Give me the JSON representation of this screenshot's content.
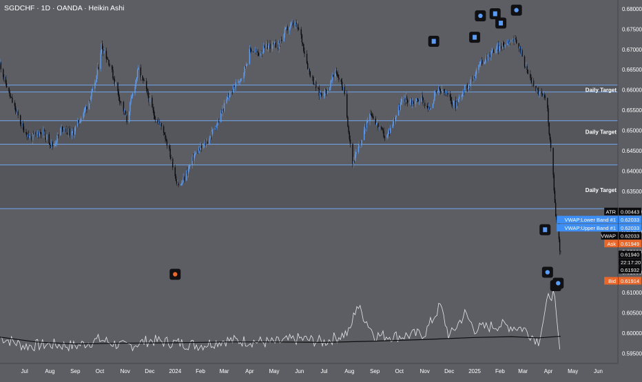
{
  "header": {
    "title": "SGDCHF · 1D · OANDA · Heikin Ashi"
  },
  "colors": {
    "background": "#5d5e64",
    "band": "#55565c",
    "up_candle": "#5b9cf6",
    "down_candle": "#0c0c0e",
    "target_line": "#6fa8f0",
    "volume_line": "#e8e8ea",
    "volume_ma": "#0c0c0e",
    "bid_ask": "#e8672a",
    "vwap_band": "#3d8ff5"
  },
  "chart_data": {
    "type": "candlestick",
    "price_axis": {
      "ticks": [
        0.68,
        0.675,
        0.67,
        0.665,
        0.66,
        0.655,
        0.65,
        0.645,
        0.64,
        0.635,
        0.63,
        0.625,
        0.62,
        0.615,
        0.61,
        0.605,
        0.6,
        0.595
      ],
      "tick_labels": [
        "0.68000",
        "0.67500",
        "0.67000",
        "0.66500",
        "0.66000",
        "0.65500",
        "0.65000",
        "0.64500",
        "0.64000",
        "0.63500",
        "0.63000",
        "0.62500",
        "0.62000",
        "0.61500",
        "0.61000",
        "0.60500",
        "0.60000",
        "0.59500"
      ],
      "range": [
        0.5925,
        0.6822
      ]
    },
    "time_axis": {
      "labels": [
        "Jul",
        "Aug",
        "Sep",
        "Oct",
        "Nov",
        "Dec",
        "2024",
        "Feb",
        "Mar",
        "Apr",
        "May",
        "Jun",
        "Jul",
        "Aug",
        "Sep",
        "Oct",
        "Nov",
        "Dec",
        "2025",
        "Feb",
        "Mar",
        "Apr",
        "May",
        "Jun"
      ],
      "range": [
        "2023-06-01",
        "2025-06-25"
      ]
    },
    "price_path": [
      [
        "2023-06-01",
        0.6665
      ],
      [
        "2023-06-12",
        0.659
      ],
      [
        "2023-06-28",
        0.651
      ],
      [
        "2023-07-08",
        0.648
      ],
      [
        "2023-07-22",
        0.65
      ],
      [
        "2023-08-05",
        0.646
      ],
      [
        "2023-08-16",
        0.651
      ],
      [
        "2023-08-28",
        0.649
      ],
      [
        "2023-09-15",
        0.656
      ],
      [
        "2023-09-25",
        0.661
      ],
      [
        "2023-10-03",
        0.671
      ],
      [
        "2023-10-12",
        0.667
      ],
      [
        "2023-10-25",
        0.658
      ],
      [
        "2023-11-03",
        0.6525
      ],
      [
        "2023-11-10",
        0.659
      ],
      [
        "2023-11-17",
        0.665
      ],
      [
        "2023-11-25",
        0.661
      ],
      [
        "2023-12-06",
        0.654
      ],
      [
        "2023-12-18",
        0.65
      ],
      [
        "2023-12-30",
        0.641
      ],
      [
        "2024-01-02",
        0.638
      ],
      [
        "2024-01-07",
        0.636
      ],
      [
        "2024-01-16",
        0.64
      ],
      [
        "2024-01-25",
        0.644
      ],
      [
        "2024-02-08",
        0.647
      ],
      [
        "2024-02-22",
        0.652
      ],
      [
        "2024-03-05",
        0.658
      ],
      [
        "2024-03-14",
        0.661
      ],
      [
        "2024-03-24",
        0.664
      ],
      [
        "2024-04-02",
        0.67
      ],
      [
        "2024-04-12",
        0.669
      ],
      [
        "2024-04-25",
        0.671
      ],
      [
        "2024-05-06",
        0.671
      ],
      [
        "2024-05-16",
        0.675
      ],
      [
        "2024-05-26",
        0.6765
      ],
      [
        "2024-06-02",
        0.674
      ],
      [
        "2024-06-12",
        0.665
      ],
      [
        "2024-06-25",
        0.659
      ],
      [
        "2024-07-06",
        0.66
      ],
      [
        "2024-07-15",
        0.665
      ],
      [
        "2024-07-25",
        0.66
      ],
      [
        "2024-08-05",
        0.642
      ],
      [
        "2024-08-15",
        0.647
      ],
      [
        "2024-08-26",
        0.655
      ],
      [
        "2024-09-05",
        0.651
      ],
      [
        "2024-09-15",
        0.648
      ],
      [
        "2024-09-25",
        0.653
      ],
      [
        "2024-10-06",
        0.658
      ],
      [
        "2024-10-17",
        0.657
      ],
      [
        "2024-10-28",
        0.658
      ],
      [
        "2024-11-06",
        0.655
      ],
      [
        "2024-11-16",
        0.66
      ],
      [
        "2024-11-27",
        0.659
      ],
      [
        "2024-12-08",
        0.656
      ],
      [
        "2024-12-18",
        0.66
      ],
      [
        "2024-12-28",
        0.662
      ],
      [
        "2025-01-06",
        0.666
      ],
      [
        "2025-01-15",
        0.668
      ],
      [
        "2025-01-25",
        0.67
      ],
      [
        "2025-02-05",
        0.671
      ],
      [
        "2025-02-15",
        0.673
      ],
      [
        "2025-02-26",
        0.67
      ],
      [
        "2025-03-07",
        0.664
      ],
      [
        "2025-03-18",
        0.66
      ],
      [
        "2025-03-27",
        0.658
      ],
      [
        "2025-03-31",
        0.6555
      ],
      [
        "2025-04-03",
        0.647
      ],
      [
        "2025-04-07",
        0.639
      ],
      [
        "2025-04-10",
        0.629
      ],
      [
        "2025-04-13",
        0.624
      ],
      [
        "2025-04-16",
        0.6194
      ]
    ],
    "volume_axis_range": [
      0.5938,
      0.6115
    ],
    "volume_path": [
      [
        "2023-06-01",
        0.599
      ],
      [
        "2023-07-01",
        0.5968
      ],
      [
        "2023-08-01",
        0.5972
      ],
      [
        "2023-09-01",
        0.5968
      ],
      [
        "2023-10-01",
        0.5984
      ],
      [
        "2023-11-01",
        0.5966
      ],
      [
        "2023-12-01",
        0.5982
      ],
      [
        "2024-01-01",
        0.5976
      ],
      [
        "2024-02-01",
        0.597
      ],
      [
        "2024-03-01",
        0.5982
      ],
      [
        "2024-04-01",
        0.598
      ],
      [
        "2024-05-01",
        0.5976
      ],
      [
        "2024-06-01",
        0.5986
      ],
      [
        "2024-07-01",
        0.5978
      ],
      [
        "2024-08-01",
        0.6002
      ],
      [
        "2024-08-10",
        0.607
      ],
      [
        "2024-09-01",
        0.5994
      ],
      [
        "2024-10-01",
        0.5992
      ],
      [
        "2024-11-01",
        0.5999
      ],
      [
        "2024-11-20",
        0.6068
      ],
      [
        "2024-12-01",
        0.599
      ],
      [
        "2024-12-20",
        0.6048
      ],
      [
        "2025-01-01",
        0.601
      ],
      [
        "2025-02-01",
        0.602
      ],
      [
        "2025-03-01",
        0.6012
      ],
      [
        "2025-03-20",
        0.598
      ],
      [
        "2025-04-02",
        0.6095
      ],
      [
        "2025-04-08",
        0.6095
      ],
      [
        "2025-04-12",
        0.601
      ],
      [
        "2025-04-16",
        0.594
      ]
    ],
    "volume_ma_path": [
      [
        "2023-06-01",
        0.599
      ],
      [
        "2023-07-15",
        0.5978
      ],
      [
        "2023-09-01",
        0.5973
      ],
      [
        "2023-11-01",
        0.5975
      ],
      [
        "2024-01-01",
        0.5976
      ],
      [
        "2024-03-01",
        0.5978
      ],
      [
        "2024-05-01",
        0.5978
      ],
      [
        "2024-07-01",
        0.5977
      ],
      [
        "2024-09-01",
        0.598
      ],
      [
        "2024-11-01",
        0.5984
      ],
      [
        "2025-01-01",
        0.5989
      ],
      [
        "2025-02-15",
        0.5991
      ],
      [
        "2025-03-20",
        0.5988
      ],
      [
        "2025-04-16",
        0.5992
      ]
    ],
    "bands": [
      [
        0.6307,
        0.6415
      ],
      [
        0.6466,
        0.6524
      ],
      [
        0.6595,
        0.6612
      ]
    ],
    "targets": [
      {
        "label": "Daily Target",
        "value": 0.66
      },
      {
        "label": "Daily Target",
        "value": 0.6497
      },
      {
        "label": "Daily Target",
        "value": 0.6353
      }
    ],
    "price_labels": [
      {
        "name": "ATR",
        "value": "0.00443",
        "price": 0.63,
        "style": "dark"
      },
      {
        "name": "VWAP:Lower Band #1",
        "value": "0.62033",
        "price": 0.628,
        "style": "blue"
      },
      {
        "name": "VWAP:Upper Band #1",
        "value": "0.62033",
        "price": 0.626,
        "style": "blue"
      },
      {
        "name": "VWAP",
        "value": "0.62033",
        "price": 0.624,
        "style": "dark"
      },
      {
        "name": "Ask",
        "value": "0.61949",
        "price": 0.6221,
        "style": "orange"
      },
      {
        "name": "",
        "value": "0.61940",
        "price": 0.6194,
        "style": "dark"
      },
      {
        "name": "",
        "value": "22:17:20",
        "price": 0.6175,
        "style": "dark"
      },
      {
        "name": "",
        "value": "0.61932",
        "price": 0.6156,
        "style": "dark"
      },
      {
        "name": "Bid",
        "value": "0.61914",
        "price": 0.6129,
        "style": "orange"
      }
    ],
    "event_markers": [
      {
        "date": "2024-01-01",
        "price": 0.6145,
        "icon": "orange-dot-icon"
      },
      {
        "date": "2024-11-12",
        "price": 0.672,
        "icon": "blue-square-icon"
      },
      {
        "date": "2025-01-01",
        "price": 0.673,
        "icon": "blue-square-icon"
      },
      {
        "date": "2025-01-08",
        "price": 0.6783,
        "icon": "blue-dot-icon"
      },
      {
        "date": "2025-01-26",
        "price": 0.6788,
        "icon": "blue-square-icon"
      },
      {
        "date": "2025-02-02",
        "price": 0.6765,
        "icon": "blue-square-icon"
      },
      {
        "date": "2025-02-21",
        "price": 0.6797,
        "icon": "blue-dot-icon"
      },
      {
        "date": "2025-03-28",
        "price": 0.6255,
        "icon": "blue-square-icon"
      },
      {
        "date": "2025-03-31",
        "price": 0.615,
        "icon": "blue-dot-icon"
      },
      {
        "date": "2025-04-10",
        "price": 0.6117,
        "icon": "blue-square-icon"
      },
      {
        "date": "2025-04-13",
        "price": 0.6123,
        "icon": "blue-dot-icon"
      }
    ]
  }
}
